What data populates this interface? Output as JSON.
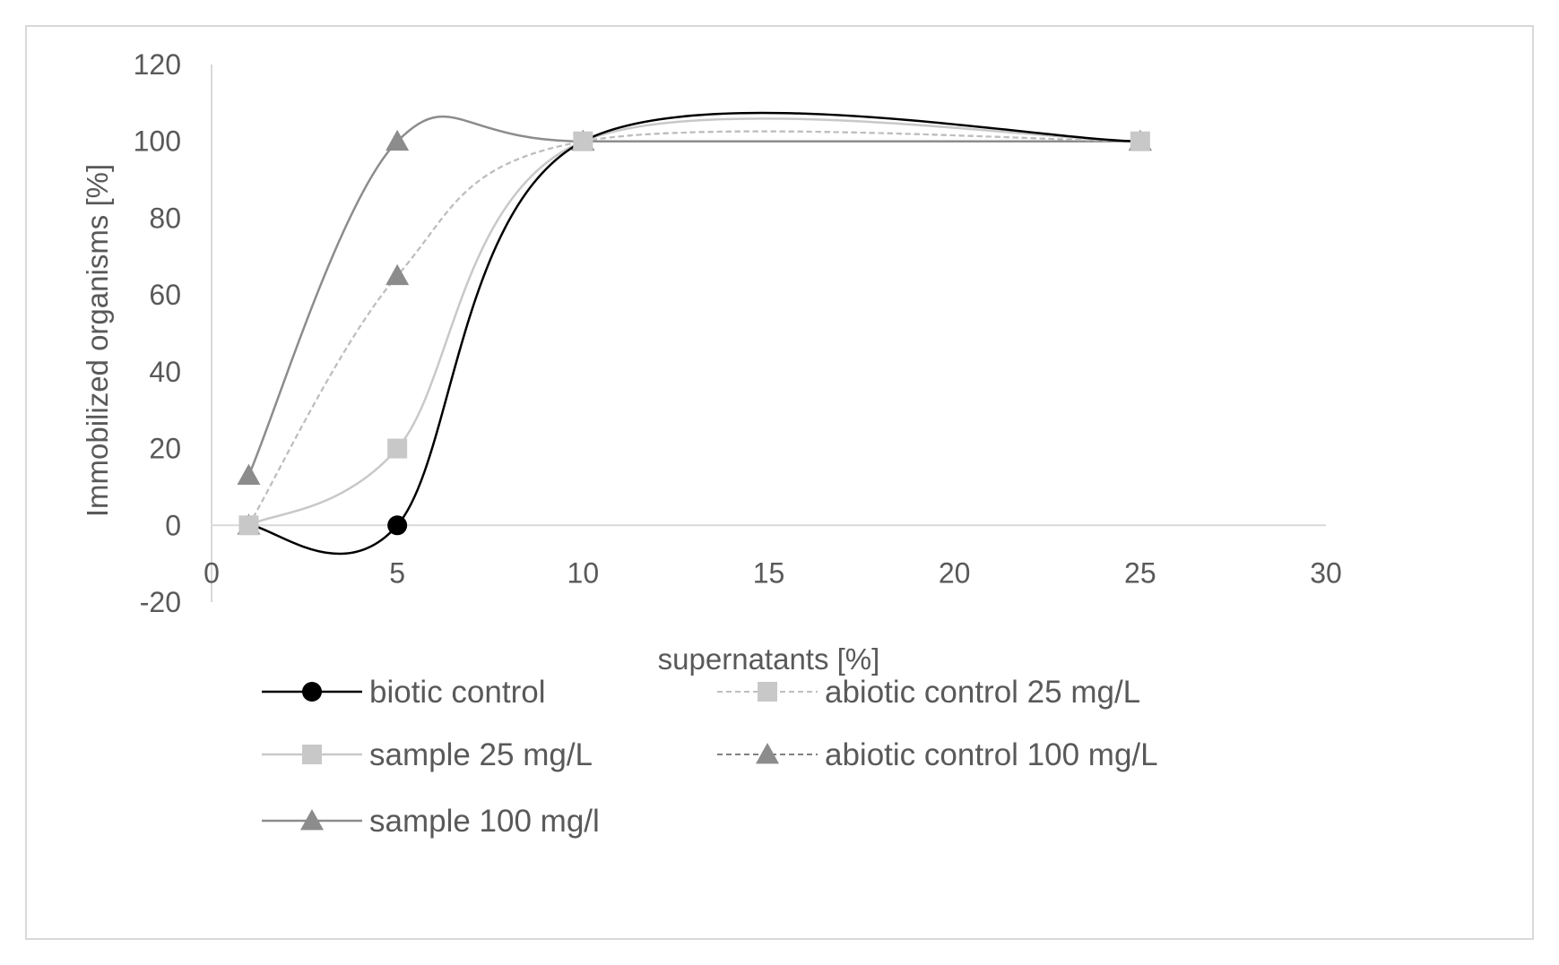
{
  "chart_data": {
    "type": "line",
    "title": "",
    "xlabel": "supernatants [%]",
    "ylabel": "Immobilized organisms [%]",
    "xlim": [
      0,
      30
    ],
    "ylim": [
      -20,
      120
    ],
    "xticks": [
      0,
      5,
      10,
      15,
      20,
      25,
      30
    ],
    "yticks": [
      -20,
      0,
      20,
      40,
      60,
      80,
      100,
      120
    ],
    "grid": false,
    "smooth": true,
    "legend_position": "bottom",
    "x": [
      1,
      5,
      10,
      25
    ],
    "series": [
      {
        "name": "biotic control",
        "values": [
          0,
          0,
          100,
          100
        ],
        "marker": "circle",
        "color": "#000000",
        "dash": "solid",
        "show_marker_all": false
      },
      {
        "name": "abiotic control 25 mg/L",
        "values": [
          0,
          65,
          100,
          100
        ],
        "marker": "square",
        "color": "#bfbfbf",
        "dash": "dashed",
        "show_marker_all": false
      },
      {
        "name": "sample 25 mg/L",
        "values": [
          0,
          20,
          100,
          100
        ],
        "marker": "square",
        "color": "#c8c8c8",
        "dash": "solid",
        "show_marker_all": true
      },
      {
        "name": "abiotic control 100 mg/L",
        "values": [
          0,
          65,
          100,
          100
        ],
        "marker": "triangle",
        "color": "#808080",
        "dash": "dashed",
        "show_marker_all": true
      },
      {
        "name": "sample 100 mg/l",
        "values": [
          13,
          100,
          100,
          100
        ],
        "marker": "triangle",
        "color": "#8c8c8c",
        "dash": "solid",
        "show_marker_all": true
      }
    ]
  }
}
